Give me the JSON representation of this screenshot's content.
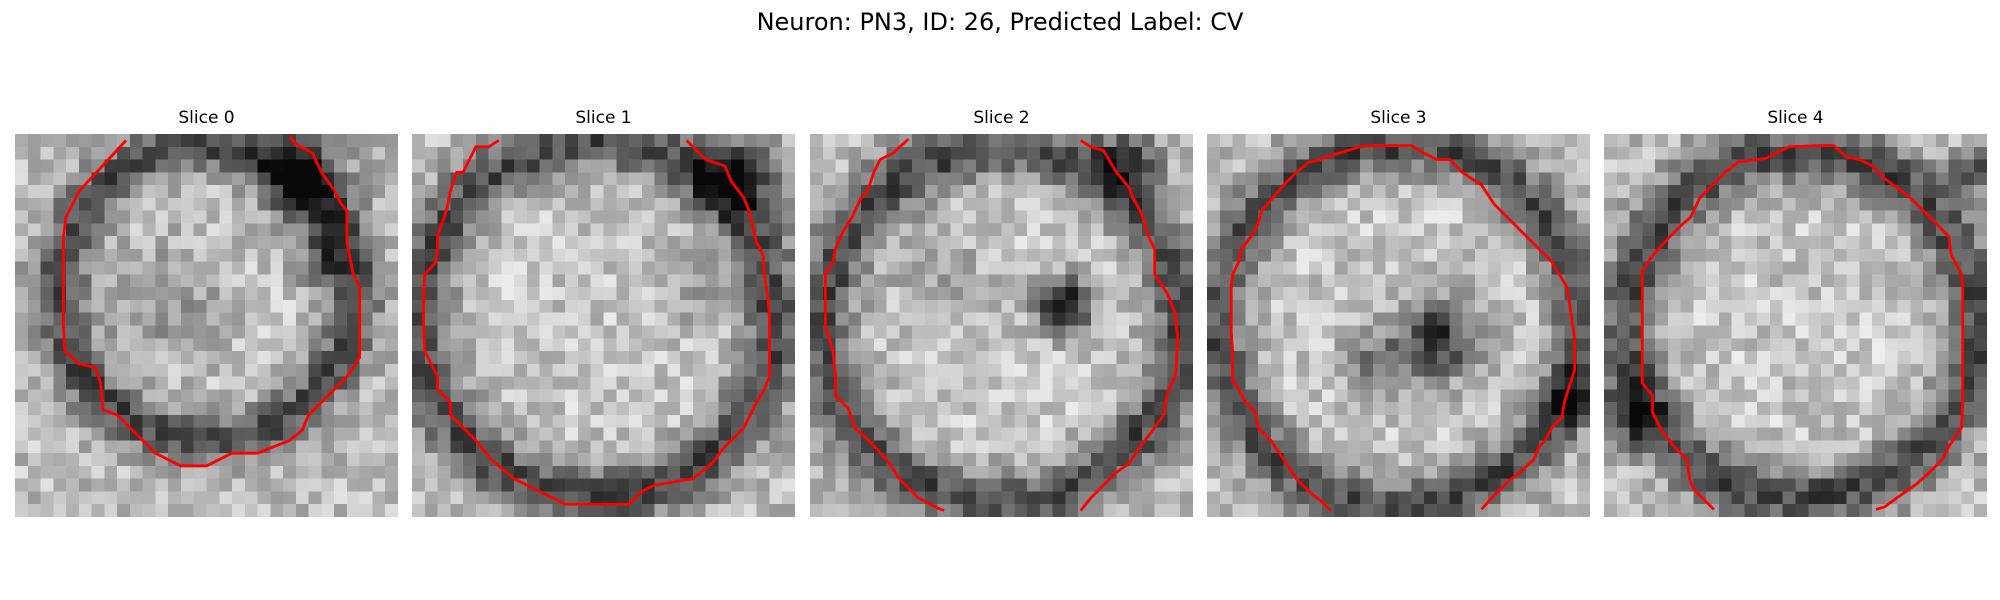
{
  "figure": {
    "title": "Neuron: PN3, ID: 26, Predicted Label: CV"
  },
  "colors": {
    "background": "#ffffff",
    "contour": "#ff0000",
    "image_colormap": "gray"
  },
  "panels": [
    {
      "label": "Slice 0"
    },
    {
      "label": "Slice 1"
    },
    {
      "label": "Slice 2"
    },
    {
      "label": "Slice 3"
    },
    {
      "label": "Slice 4"
    }
  ]
}
